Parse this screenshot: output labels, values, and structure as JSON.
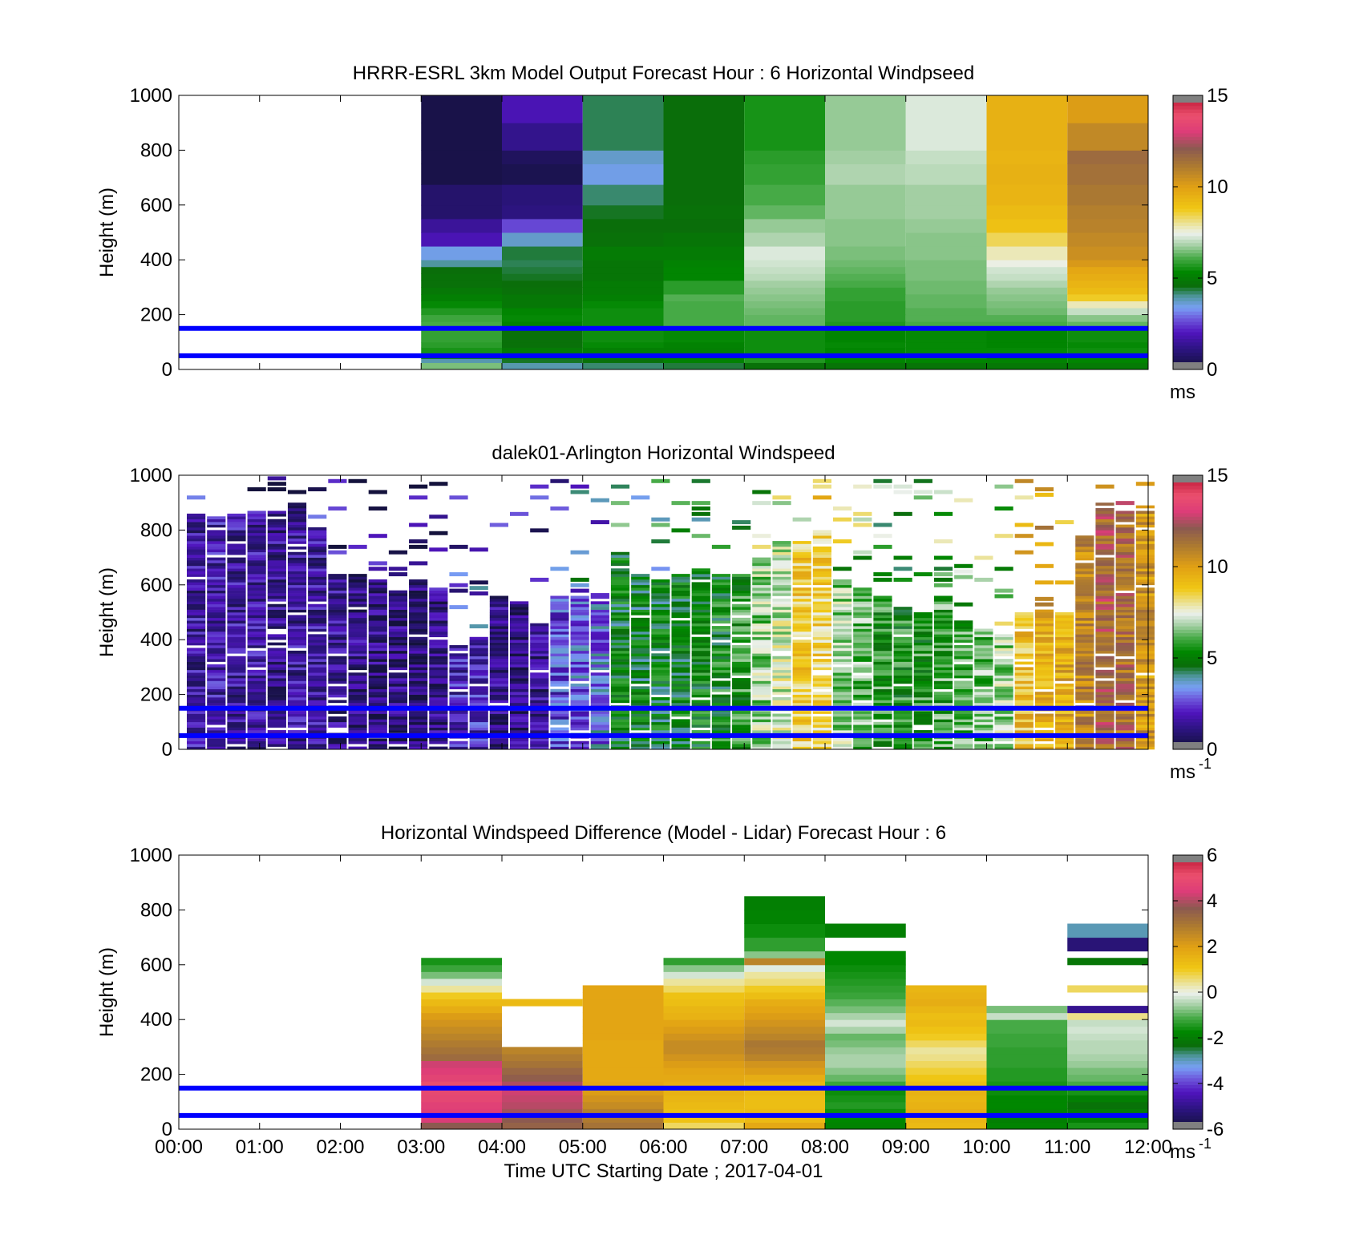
{
  "chart_data": [
    {
      "type": "heatmap",
      "title": "HRRR-ESRL 3km Model Output   Forecast Hour : 6 Horizontal Windpseed",
      "ylabel": "Height (m)",
      "ylim": [
        0,
        1000
      ],
      "y_ticks": [
        "0",
        "200",
        "400",
        "600",
        "800",
        "1000"
      ],
      "x_tick_labels": [],
      "colorbar": {
        "min": 0,
        "max": 15,
        "ticks": [
          "0",
          "5",
          "10",
          "15"
        ],
        "unit": "ms",
        "unit_sup": ""
      },
      "hlines": [
        50,
        150
      ],
      "hline_color": "#0000ff",
      "row_edges": [
        0,
        25,
        40,
        60,
        80,
        100,
        150,
        175,
        200,
        225,
        250,
        275,
        300,
        325,
        350,
        375,
        400,
        450,
        500,
        550,
        600,
        675,
        750,
        800,
        900,
        1000
      ],
      "columns": [
        {
          "start": "03:00",
          "end": "04:00",
          "values": [
            6.4,
            3.8,
            4.8,
            5.5,
            5.7,
            5.8,
            6.0,
            5.9,
            5.6,
            5.3,
            5.0,
            4.8,
            4.6,
            4.6,
            4.5,
            3.9,
            3.4,
            1.8,
            1.4,
            0.7,
            0.7,
            0.2,
            0.2,
            0.2,
            0.2
          ]
        },
        {
          "start": "04:00",
          "end": "05:00",
          "values": [
            3.8,
            4.4,
            4.9,
            4.9,
            4.6,
            4.6,
            5.1,
            5.3,
            5.2,
            4.8,
            4.8,
            4.6,
            4.5,
            4.4,
            4.3,
            4.2,
            4.3,
            3.6,
            2.5,
            1.0,
            0.9,
            0.3,
            0.5,
            1.2,
            1.8
          ]
        },
        {
          "start": "05:00",
          "end": "06:00",
          "values": [
            4.1,
            4.6,
            5.1,
            5.0,
            5.3,
            5.4,
            5.4,
            5.4,
            5.4,
            5.3,
            5.0,
            4.9,
            4.9,
            4.7,
            4.7,
            4.7,
            4.9,
            4.6,
            4.5,
            4.4,
            4.1,
            3.4,
            3.6,
            4.2,
            4.2
          ]
        },
        {
          "start": "06:00",
          "end": "07:00",
          "values": [
            4.3,
            5.1,
            5.0,
            5.0,
            5.1,
            5.3,
            6.0,
            6.0,
            6.0,
            6.0,
            6.1,
            5.7,
            5.7,
            5.2,
            5.2,
            5.1,
            4.9,
            4.7,
            4.5,
            4.6,
            4.5,
            4.5,
            4.5,
            4.5,
            4.5
          ]
        },
        {
          "start": "07:00",
          "end": "08:00",
          "values": [
            4.6,
            5.6,
            5.5,
            5.4,
            5.4,
            5.4,
            6.2,
            6.2,
            6.3,
            6.4,
            6.5,
            6.6,
            6.7,
            6.9,
            7.0,
            7.1,
            7.2,
            6.8,
            6.6,
            6.2,
            6.0,
            5.8,
            5.7,
            5.5,
            5.5
          ]
        },
        {
          "start": "08:00",
          "end": "09:00",
          "values": [
            4.7,
            5.2,
            5.3,
            5.2,
            5.3,
            5.2,
            5.6,
            5.7,
            5.7,
            5.7,
            5.8,
            5.8,
            6.0,
            6.1,
            6.2,
            6.3,
            6.4,
            6.5,
            6.5,
            6.6,
            6.6,
            6.8,
            6.7,
            6.6,
            6.6
          ]
        },
        {
          "start": "09:00",
          "end": "10:00",
          "values": [
            4.7,
            5.2,
            5.4,
            5.3,
            5.3,
            5.3,
            6.0,
            6.1,
            6.1,
            6.2,
            6.2,
            6.3,
            6.3,
            6.4,
            6.4,
            6.4,
            6.5,
            6.5,
            6.6,
            6.7,
            6.7,
            6.9,
            7.0,
            7.2,
            7.2
          ]
        },
        {
          "start": "10:00",
          "end": "11:00",
          "values": [
            4.8,
            5.1,
            5.2,
            5.3,
            5.2,
            5.2,
            6.0,
            6.1,
            6.3,
            6.4,
            6.5,
            6.6,
            6.8,
            7.0,
            7.1,
            7.4,
            7.7,
            8.3,
            8.9,
            9.1,
            9.3,
            9.4,
            9.3,
            9.4,
            9.4
          ]
        },
        {
          "start": "11:00",
          "end": "12:00",
          "values": [
            4.9,
            5.2,
            5.3,
            5.4,
            5.3,
            5.4,
            6.2,
            6.5,
            7.0,
            7.7,
            8.6,
            9.1,
            9.3,
            9.5,
            9.7,
            10.1,
            10.4,
            10.6,
            10.8,
            10.9,
            11.1,
            11.3,
            11.5,
            10.6,
            10.0
          ]
        }
      ]
    },
    {
      "type": "heatmap",
      "title": "dalek01-Arlington  Horizontal Windspeed",
      "ylabel": "Height (m)",
      "ylim": [
        0,
        1000
      ],
      "y_ticks": [
        "0",
        "200",
        "400",
        "600",
        "800",
        "1000"
      ],
      "x_tick_labels": [],
      "colorbar": {
        "min": 0,
        "max": 15,
        "ticks": [
          "0",
          "5",
          "10",
          "15"
        ],
        "unit": "ms",
        "unit_sup": "-1"
      },
      "hlines": [
        50,
        150
      ],
      "hline_color": "#0000ff",
      "time_step_min": 15,
      "profiles": [
        {
          "start": "00:00",
          "top_m": 860,
          "mean_ms": 1.5
        },
        {
          "start": "00:15",
          "top_m": 850,
          "mean_ms": 1.6
        },
        {
          "start": "00:30",
          "top_m": 860,
          "mean_ms": 1.5
        },
        {
          "start": "00:45",
          "top_m": 870,
          "mean_ms": 1.5
        },
        {
          "start": "01:00",
          "top_m": 870,
          "mean_ms": 1.3
        },
        {
          "start": "01:15",
          "top_m": 900,
          "mean_ms": 1.4
        },
        {
          "start": "01:30",
          "top_m": 810,
          "mean_ms": 1.5
        },
        {
          "start": "01:45",
          "top_m": 640,
          "mean_ms": 1.3
        },
        {
          "start": "02:00",
          "top_m": 640,
          "mean_ms": 1.1
        },
        {
          "start": "02:15",
          "top_m": 620,
          "mean_ms": 1.0
        },
        {
          "start": "02:30",
          "top_m": 580,
          "mean_ms": 1.0
        },
        {
          "start": "02:45",
          "top_m": 620,
          "mean_ms": 0.8
        },
        {
          "start": "03:00",
          "top_m": 590,
          "mean_ms": 1.2
        },
        {
          "start": "03:15",
          "top_m": 380,
          "mean_ms": 1.8
        },
        {
          "start": "03:30",
          "top_m": 410,
          "mean_ms": 2.0
        },
        {
          "start": "03:45",
          "top_m": 560,
          "mean_ms": 1.2
        },
        {
          "start": "04:00",
          "top_m": 540,
          "mean_ms": 1.0
        },
        {
          "start": "04:15",
          "top_m": 460,
          "mean_ms": 1.2
        },
        {
          "start": "04:30",
          "top_m": 560,
          "mean_ms": 2.4
        },
        {
          "start": "04:45",
          "top_m": 560,
          "mean_ms": 2.8
        },
        {
          "start": "05:00",
          "top_m": 570,
          "mean_ms": 3.0
        },
        {
          "start": "05:15",
          "top_m": 720,
          "mean_ms": 4.8
        },
        {
          "start": "05:30",
          "top_m": 640,
          "mean_ms": 4.6
        },
        {
          "start": "05:45",
          "top_m": 620,
          "mean_ms": 4.7
        },
        {
          "start": "06:00",
          "top_m": 640,
          "mean_ms": 4.8
        },
        {
          "start": "06:15",
          "top_m": 660,
          "mean_ms": 5.0
        },
        {
          "start": "06:30",
          "top_m": 640,
          "mean_ms": 5.1
        },
        {
          "start": "06:45",
          "top_m": 650,
          "mean_ms": 5.5
        },
        {
          "start": "07:00",
          "top_m": 700,
          "mean_ms": 6.6
        },
        {
          "start": "07:15",
          "top_m": 760,
          "mean_ms": 7.2
        },
        {
          "start": "07:30",
          "top_m": 760,
          "mean_ms": 8.6
        },
        {
          "start": "07:45",
          "top_m": 800,
          "mean_ms": 8.4
        },
        {
          "start": "08:00",
          "top_m": 620,
          "mean_ms": 6.6
        },
        {
          "start": "08:15",
          "top_m": 600,
          "mean_ms": 6.2
        },
        {
          "start": "08:30",
          "top_m": 560,
          "mean_ms": 5.6
        },
        {
          "start": "08:45",
          "top_m": 520,
          "mean_ms": 5.4
        },
        {
          "start": "09:00",
          "top_m": 500,
          "mean_ms": 5.5
        },
        {
          "start": "09:15",
          "top_m": 560,
          "mean_ms": 5.9
        },
        {
          "start": "09:30",
          "top_m": 470,
          "mean_ms": 6.0
        },
        {
          "start": "09:45",
          "top_m": 440,
          "mean_ms": 6.2
        },
        {
          "start": "10:00",
          "top_m": 420,
          "mean_ms": 6.6
        },
        {
          "start": "10:15",
          "top_m": 500,
          "mean_ms": 9.0
        },
        {
          "start": "10:30",
          "top_m": 510,
          "mean_ms": 9.4
        },
        {
          "start": "10:45",
          "top_m": 510,
          "mean_ms": 9.6
        },
        {
          "start": "11:00",
          "top_m": 780,
          "mean_ms": 10.6
        },
        {
          "start": "11:15",
          "top_m": 900,
          "mean_ms": 11.8
        },
        {
          "start": "11:30",
          "top_m": 880,
          "mean_ms": 11.4
        },
        {
          "start": "11:45",
          "top_m": 890,
          "mean_ms": 10.2
        }
      ]
    },
    {
      "type": "heatmap",
      "title": "Horizontal Windspeed Difference (Model - Lidar) Forecast Hour : 6",
      "xlabel": "Time UTC  Starting Date ; 2017-04-01",
      "ylabel": "Height (m)",
      "ylim": [
        0,
        1000
      ],
      "y_ticks": [
        "0",
        "200",
        "400",
        "600",
        "800",
        "1000"
      ],
      "x_tick_labels": [
        "00:00",
        "01:00",
        "02:00",
        "03:00",
        "04:00",
        "05:00",
        "06:00",
        "07:00",
        "08:00",
        "09:00",
        "10:00",
        "11:00",
        "12:00"
      ],
      "colorbar": {
        "min": -6,
        "max": 6,
        "ticks": [
          "-6",
          "-4",
          "-2",
          "0",
          "2",
          "4",
          "6"
        ],
        "unit": "ms",
        "unit_sup": "-1"
      },
      "hlines": [
        50,
        150
      ],
      "hline_color": "#0000ff",
      "row_edges": [
        0,
        25,
        50,
        75,
        100,
        125,
        150,
        175,
        200,
        225,
        250,
        275,
        300,
        325,
        350,
        375,
        400,
        425,
        450,
        475,
        500,
        525,
        550,
        575,
        600,
        625,
        650,
        700,
        750,
        800,
        850
      ],
      "columns": [
        {
          "start": "03:00",
          "end": "04:00",
          "values": [
            3.6,
            4.3,
            4.4,
            4.5,
            4.7,
            4.8,
            5.0,
            4.6,
            4.4,
            4.2,
            3.2,
            3.0,
            2.8,
            2.6,
            2.4,
            2.2,
            2.0,
            1.6,
            1.3,
            0.9,
            0.3,
            -0.3,
            -0.9,
            -1.3,
            -1.6,
            null,
            null,
            null,
            null,
            null
          ]
        },
        {
          "start": "04:00",
          "end": "05:00",
          "values": [
            3.4,
            3.6,
            3.8,
            4.0,
            4.1,
            4.2,
            3.9,
            3.5,
            3.3,
            3.0,
            2.8,
            2.6,
            null,
            null,
            null,
            null,
            null,
            null,
            1.3,
            null,
            null,
            null,
            null,
            null,
            null,
            null,
            null,
            null,
            null,
            null
          ]
        },
        {
          "start": "05:00",
          "end": "06:00",
          "values": [
            3.0,
            2.8,
            2.7,
            2.4,
            2.2,
            2.0,
            1.8,
            1.7,
            1.7,
            1.7,
            1.7,
            1.7,
            1.7,
            1.8,
            1.8,
            1.8,
            1.8,
            1.8,
            1.8,
            1.8,
            1.8,
            null,
            null,
            null,
            null,
            null,
            null,
            null,
            null,
            null
          ]
        },
        {
          "start": "06:00",
          "end": "07:00",
          "values": [
            0.6,
            1.1,
            1.2,
            1.3,
            1.4,
            1.5,
            1.6,
            1.7,
            1.8,
            2.0,
            2.2,
            2.4,
            2.4,
            2.2,
            2.0,
            1.8,
            1.5,
            1.4,
            1.2,
            1.1,
            0.6,
            0.3,
            -0.3,
            -0.8,
            -1.4,
            null,
            null,
            null,
            null,
            null
          ]
        },
        {
          "start": "07:00",
          "end": "08:00",
          "values": [
            1.7,
            1.3,
            1.3,
            1.2,
            1.2,
            1.3,
            1.4,
            1.6,
            2.0,
            2.2,
            2.6,
            2.8,
            2.9,
            2.6,
            2.4,
            2.2,
            2.0,
            1.8,
            1.6,
            1.2,
            0.9,
            0.5,
            0.3,
            -0.2,
            2.6,
            -0.8,
            -1.4,
            -1.7,
            -1.9,
            -2.0
          ]
        },
        {
          "start": "08:00",
          "end": "09:00",
          "values": [
            -1.9,
            -1.8,
            -1.7,
            -1.5,
            -1.6,
            -1.7,
            -1.3,
            -1.0,
            -0.8,
            -0.6,
            -0.6,
            -0.7,
            -0.9,
            -1.0,
            -0.6,
            -0.3,
            -0.6,
            -0.9,
            -1.1,
            -1.3,
            -1.4,
            -1.5,
            -1.6,
            -1.7,
            -1.8,
            -1.8,
            null,
            -2.0,
            null,
            null
          ]
        },
        {
          "start": "09:00",
          "end": "10:00",
          "values": [
            1.3,
            1.4,
            1.6,
            1.5,
            1.4,
            1.5,
            1.2,
            1.0,
            0.8,
            0.6,
            0.4,
            0.3,
            0.6,
            0.9,
            1.1,
            1.3,
            1.2,
            1.4,
            1.6,
            1.5,
            1.4,
            null,
            null,
            null,
            null,
            null,
            null,
            null,
            null,
            null
          ]
        },
        {
          "start": "10:00",
          "end": "11:00",
          "values": [
            -1.9,
            -2.0,
            -1.9,
            -1.8,
            -1.8,
            -1.7,
            -1.6,
            -1.5,
            -1.5,
            -1.4,
            -1.4,
            -1.4,
            -1.3,
            -1.3,
            -1.2,
            -1.2,
            -0.4,
            -0.9,
            null,
            null,
            null,
            null,
            null,
            null,
            null,
            null,
            null,
            null,
            null,
            null
          ]
        },
        {
          "start": "11:00",
          "end": "12:00",
          "values": [
            -1.6,
            -2.0,
            -2.1,
            -2.3,
            -2.0,
            -1.6,
            -1.2,
            -1.0,
            -0.9,
            -0.7,
            -0.6,
            -0.5,
            -0.5,
            -0.4,
            -0.3,
            -0.4,
            0.4,
            -5.0,
            null,
            null,
            0.6,
            null,
            null,
            null,
            -2.2,
            null,
            -5.3,
            -3.0,
            null,
            null
          ]
        }
      ]
    }
  ]
}
